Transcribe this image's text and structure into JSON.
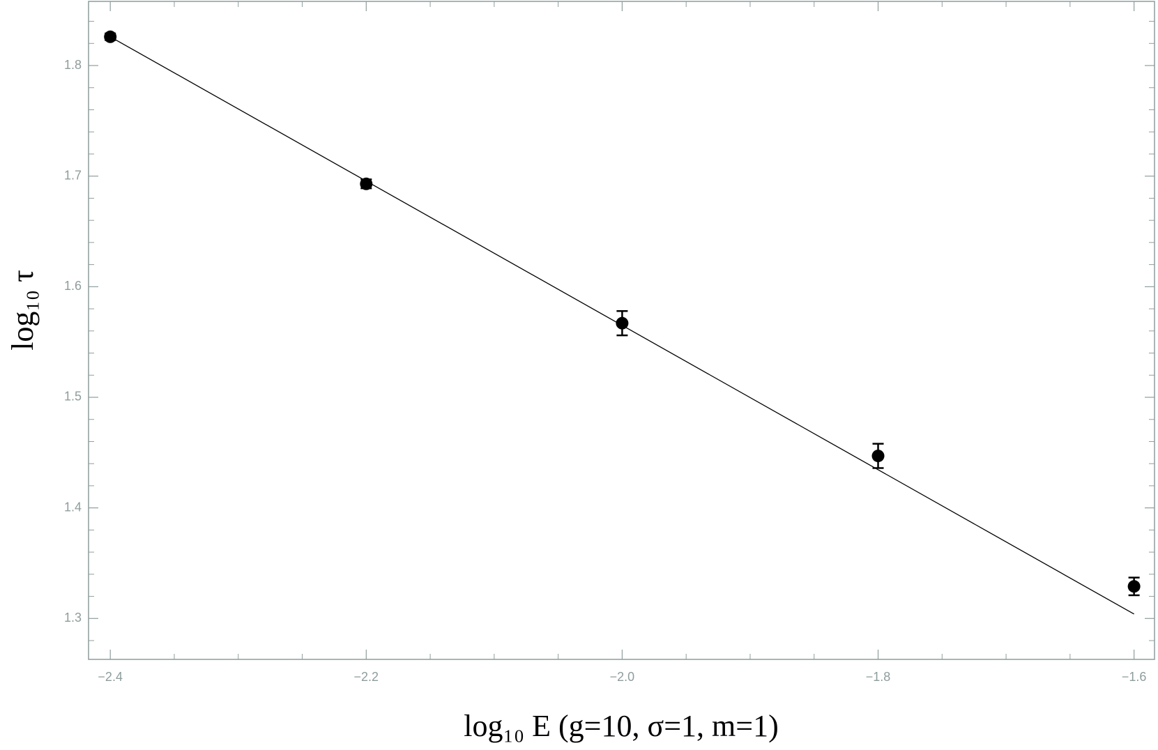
{
  "chart_data": {
    "type": "scatter",
    "xlabel": "log₁₀ E   (g=10, σ=1, m=1)",
    "ylabel": "log₁₀ τ",
    "x": [
      -2.4,
      -2.2,
      -2.0,
      -1.8,
      -1.6
    ],
    "series": [
      {
        "color": "#000000",
        "values": [
          1.826,
          1.693,
          1.567,
          1.447,
          1.329
        ],
        "errors": [
          0.003,
          0.004,
          0.011,
          0.011,
          0.008
        ]
      }
    ],
    "fit": {
      "color": "#000000",
      "x": [
        -2.4,
        -1.6
      ],
      "values": [
        1.826,
        1.304
      ]
    },
    "xlim": [
      -2.417,
      -1.584
    ],
    "ylim": [
      1.263,
      1.858
    ],
    "xticks": [
      {
        "value": -2.4,
        "label": "−2.4"
      },
      {
        "value": -2.2,
        "label": "−2.2"
      },
      {
        "value": -2.0,
        "label": "−2.0"
      },
      {
        "value": -1.8,
        "label": "−1.8"
      },
      {
        "value": -1.6,
        "label": "−1.6"
      }
    ],
    "yticks": [
      1.3,
      1.4,
      1.5,
      1.6,
      1.7,
      1.8
    ],
    "x_minor_ticks": [
      -2.35,
      -2.3,
      -2.25,
      -2.15,
      -2.1,
      -2.05,
      -1.95,
      -1.9,
      -1.85,
      -1.75,
      -1.7,
      -1.65
    ],
    "y_minor_ticks": [
      1.28,
      1.32,
      1.34,
      1.36,
      1.38,
      1.42,
      1.44,
      1.46,
      1.48,
      1.52,
      1.54,
      1.56,
      1.58,
      1.62,
      1.64,
      1.66,
      1.68,
      1.72,
      1.74,
      1.76,
      1.78,
      1.82,
      1.84
    ],
    "frame_color": "#8f9c9c"
  }
}
